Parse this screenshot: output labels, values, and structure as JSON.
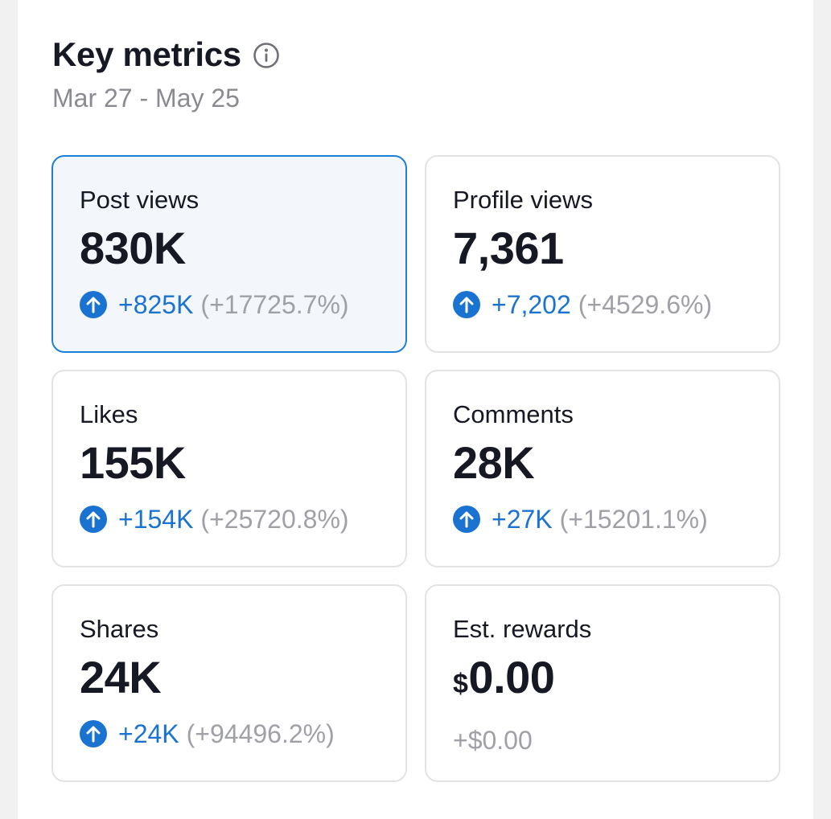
{
  "header": {
    "title": "Key metrics",
    "date_range": "Mar 27 - May 25"
  },
  "colors": {
    "accent": "#1a73d1",
    "selected_border": "#1e7fd6",
    "muted": "#a0a1a7"
  },
  "metrics": [
    {
      "label": "Post views",
      "value": "830K",
      "delta": "+825K",
      "pct": "(+17725.7%)",
      "selected": true
    },
    {
      "label": "Profile views",
      "value": "7,361",
      "delta": "+7,202",
      "pct": "(+4529.6%)"
    },
    {
      "label": "Likes",
      "value": "155K",
      "delta": "+154K",
      "pct": "(+25720.8%)"
    },
    {
      "label": "Comments",
      "value": "28K",
      "delta": "+27K",
      "pct": "(+15201.1%)"
    },
    {
      "label": "Shares",
      "value": "24K",
      "delta": "+24K",
      "pct": "(+94496.2%)"
    },
    {
      "label": "Est. rewards",
      "currency": "$",
      "value": "0.00",
      "delta": "+$0.00"
    }
  ]
}
